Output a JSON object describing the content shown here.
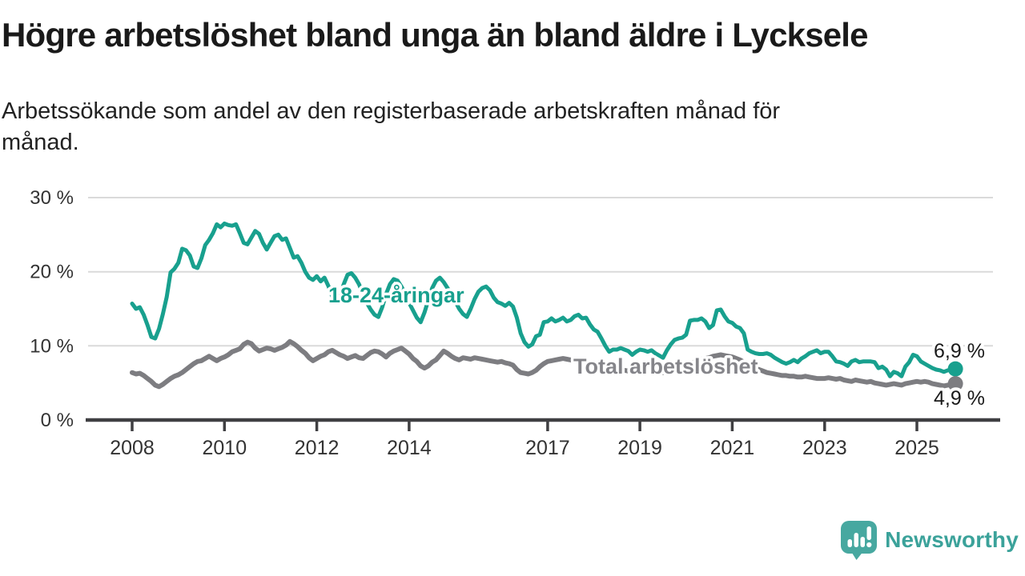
{
  "header": {
    "title": "Högre arbetslöshet bland unga än bland äldre i Lycksele",
    "subtitle_line1": "Arbetssökande som andel av den registerbaserade arbetskraften månad för",
    "subtitle_line2": "månad."
  },
  "chart_data": {
    "type": "line",
    "unit": "%",
    "title": "Högre arbetslöshet bland unga än bland äldre i Lycksele",
    "x_axis": {
      "tick_years": [
        2008,
        2010,
        2012,
        2014,
        2017,
        2019,
        2021,
        2023,
        2025
      ],
      "tick_labels": [
        "2008",
        "2010",
        "2012",
        "2014",
        "2017",
        "2019",
        "2021",
        "2023",
        "2025"
      ],
      "range_years": [
        2008,
        2025.83
      ]
    },
    "y_axis": {
      "ticks": [
        0,
        10,
        20,
        30
      ],
      "tick_labels": [
        "0 %",
        "10 %",
        "20 %",
        "30 %"
      ],
      "range": [
        0,
        30
      ],
      "grid": true
    },
    "colors": {
      "grid": "#dadada",
      "axis": "#3f3f42",
      "tick_text": "#333333"
    },
    "legend_position": "inline-labels",
    "series": [
      {
        "name": "18-24-åringar",
        "color": "#18a08e",
        "label_color": "#18a08e",
        "end_label": "6,9 %",
        "end_value": 6.9,
        "start_year": 2008,
        "step_months": 1,
        "values": [
          15.7,
          15.0,
          15.2,
          14.2,
          12.8,
          11.2,
          11.0,
          12.3,
          14.3,
          16.6,
          19.9,
          20.4,
          21.2,
          23.1,
          22.9,
          22.2,
          20.7,
          20.5,
          21.8,
          23.6,
          24.3,
          25.2,
          26.4,
          26.0,
          26.5,
          26.3,
          26.2,
          26.4,
          25.2,
          23.9,
          23.7,
          24.6,
          25.5,
          25.1,
          23.9,
          23.0,
          23.9,
          24.8,
          25.0,
          24.3,
          24.5,
          23.2,
          21.9,
          22.1,
          21.2,
          20.0,
          19.2,
          18.9,
          19.4,
          18.7,
          19.2,
          18.1,
          16.7,
          15.8,
          16.8,
          18.3,
          19.6,
          19.8,
          19.2,
          18.3,
          17.0,
          15.8,
          14.9,
          14.2,
          13.9,
          15.2,
          17.0,
          18.3,
          19.0,
          18.8,
          18.0,
          17.0,
          15.8,
          14.8,
          13.8,
          13.2,
          14.5,
          16.2,
          17.8,
          18.8,
          19.2,
          18.6,
          17.8,
          17.0,
          16.0,
          15.0,
          14.3,
          13.9,
          15.0,
          16.3,
          17.3,
          17.8,
          18.0,
          17.5,
          16.5,
          15.9,
          15.7,
          15.4,
          15.8,
          15.3,
          13.8,
          11.7,
          10.5,
          9.9,
          10.2,
          11.3,
          11.5,
          13.2,
          13.3,
          13.7,
          13.3,
          13.5,
          13.8,
          13.3,
          13.5,
          14.0,
          14.2,
          13.7,
          13.8,
          12.9,
          12.2,
          11.9,
          11.0,
          10.0,
          9.2,
          9.5,
          9.5,
          9.7,
          9.5,
          9.3,
          8.8,
          9.2,
          9.5,
          9.4,
          9.2,
          9.4,
          9.0,
          8.7,
          8.4,
          9.4,
          10.2,
          10.8,
          11.0,
          11.1,
          11.5,
          13.4,
          13.5,
          13.5,
          13.7,
          13.3,
          12.4,
          12.8,
          14.8,
          14.9,
          14.0,
          13.3,
          13.1,
          12.6,
          12.4,
          11.7,
          9.5,
          9.2,
          9.0,
          8.9,
          8.9,
          9.0,
          8.8,
          8.4,
          8.1,
          7.8,
          7.6,
          7.8,
          8.1,
          7.8,
          8.3,
          8.6,
          9.0,
          9.2,
          9.4,
          9.0,
          9.2,
          9.2,
          8.6,
          7.9,
          7.8,
          7.6,
          7.3,
          7.9,
          8.1,
          7.8,
          7.9,
          7.9,
          7.9,
          7.8,
          7.0,
          7.2,
          6.8,
          5.9,
          6.5,
          6.3,
          5.9,
          7.2,
          7.8,
          8.8,
          8.6,
          7.9,
          7.6,
          7.3,
          7.0,
          6.8,
          6.7,
          6.5,
          6.7,
          6.8,
          6.9
        ]
      },
      {
        "name": "Total arbetslöshet",
        "color": "#7d7d81",
        "label_color": "#85858a",
        "end_label": "4,9 %",
        "end_value": 4.9,
        "start_year": 2008,
        "step_months": 1,
        "values": [
          6.4,
          6.2,
          6.3,
          6.0,
          5.6,
          5.2,
          4.7,
          4.5,
          4.8,
          5.2,
          5.6,
          5.9,
          6.1,
          6.4,
          6.8,
          7.2,
          7.6,
          7.9,
          8.0,
          8.3,
          8.6,
          8.3,
          8.0,
          8.3,
          8.5,
          8.8,
          9.2,
          9.4,
          9.6,
          10.2,
          10.5,
          10.3,
          9.7,
          9.3,
          9.5,
          9.7,
          9.6,
          9.4,
          9.6,
          9.8,
          10.1,
          10.6,
          10.3,
          9.9,
          9.4,
          9.0,
          8.4,
          8.0,
          8.3,
          8.6,
          8.8,
          9.2,
          9.4,
          9.1,
          8.8,
          8.6,
          8.3,
          8.5,
          8.7,
          8.4,
          8.3,
          8.7,
          9.1,
          9.3,
          9.2,
          8.9,
          8.5,
          9.0,
          9.3,
          9.5,
          9.7,
          9.3,
          8.9,
          8.3,
          7.9,
          7.3,
          7.0,
          7.3,
          7.8,
          8.1,
          8.7,
          9.3,
          9.0,
          8.6,
          8.3,
          8.1,
          8.4,
          8.3,
          8.2,
          8.4,
          8.3,
          8.2,
          8.1,
          8.0,
          7.9,
          7.8,
          7.9,
          7.7,
          7.6,
          7.4,
          6.8,
          6.4,
          6.3,
          6.2,
          6.4,
          6.7,
          7.2,
          7.6,
          7.9,
          8.0,
          8.1,
          8.2,
          8.3,
          8.2,
          8.1,
          8.0,
          8.1,
          7.9,
          7.8,
          7.7,
          7.5,
          7.4,
          7.2,
          7.1,
          7.0,
          6.9,
          6.9,
          6.8,
          6.7,
          6.6,
          6.6,
          6.7,
          6.7,
          6.6,
          6.6,
          6.5,
          6.5,
          6.4,
          6.4,
          6.5,
          6.5,
          6.6,
          6.7,
          6.9,
          7.2,
          7.5,
          7.8,
          8.0,
          8.2,
          8.3,
          8.4,
          8.6,
          8.7,
          8.8,
          8.7,
          8.6,
          8.5,
          8.3,
          8.1,
          7.8,
          7.5,
          7.2,
          7.0,
          6.8,
          6.6,
          6.4,
          6.3,
          6.2,
          6.1,
          6.0,
          6.0,
          5.9,
          5.9,
          5.8,
          5.8,
          5.9,
          5.8,
          5.7,
          5.6,
          5.6,
          5.6,
          5.7,
          5.6,
          5.5,
          5.6,
          5.4,
          5.3,
          5.2,
          5.4,
          5.3,
          5.2,
          5.1,
          5.2,
          5.0,
          4.9,
          4.8,
          4.7,
          4.8,
          4.9,
          4.8,
          4.7,
          4.9,
          5.0,
          5.1,
          5.2,
          5.1,
          5.2,
          5.1,
          4.9,
          4.8,
          4.7,
          4.6,
          4.7,
          4.8,
          4.9
        ]
      }
    ]
  },
  "footer": {
    "brand": "Newsworthy",
    "brand_color": "#3ba29a",
    "icon_color": "#47a8a0",
    "icon": "newsworthy-bar-chart-bubble"
  }
}
